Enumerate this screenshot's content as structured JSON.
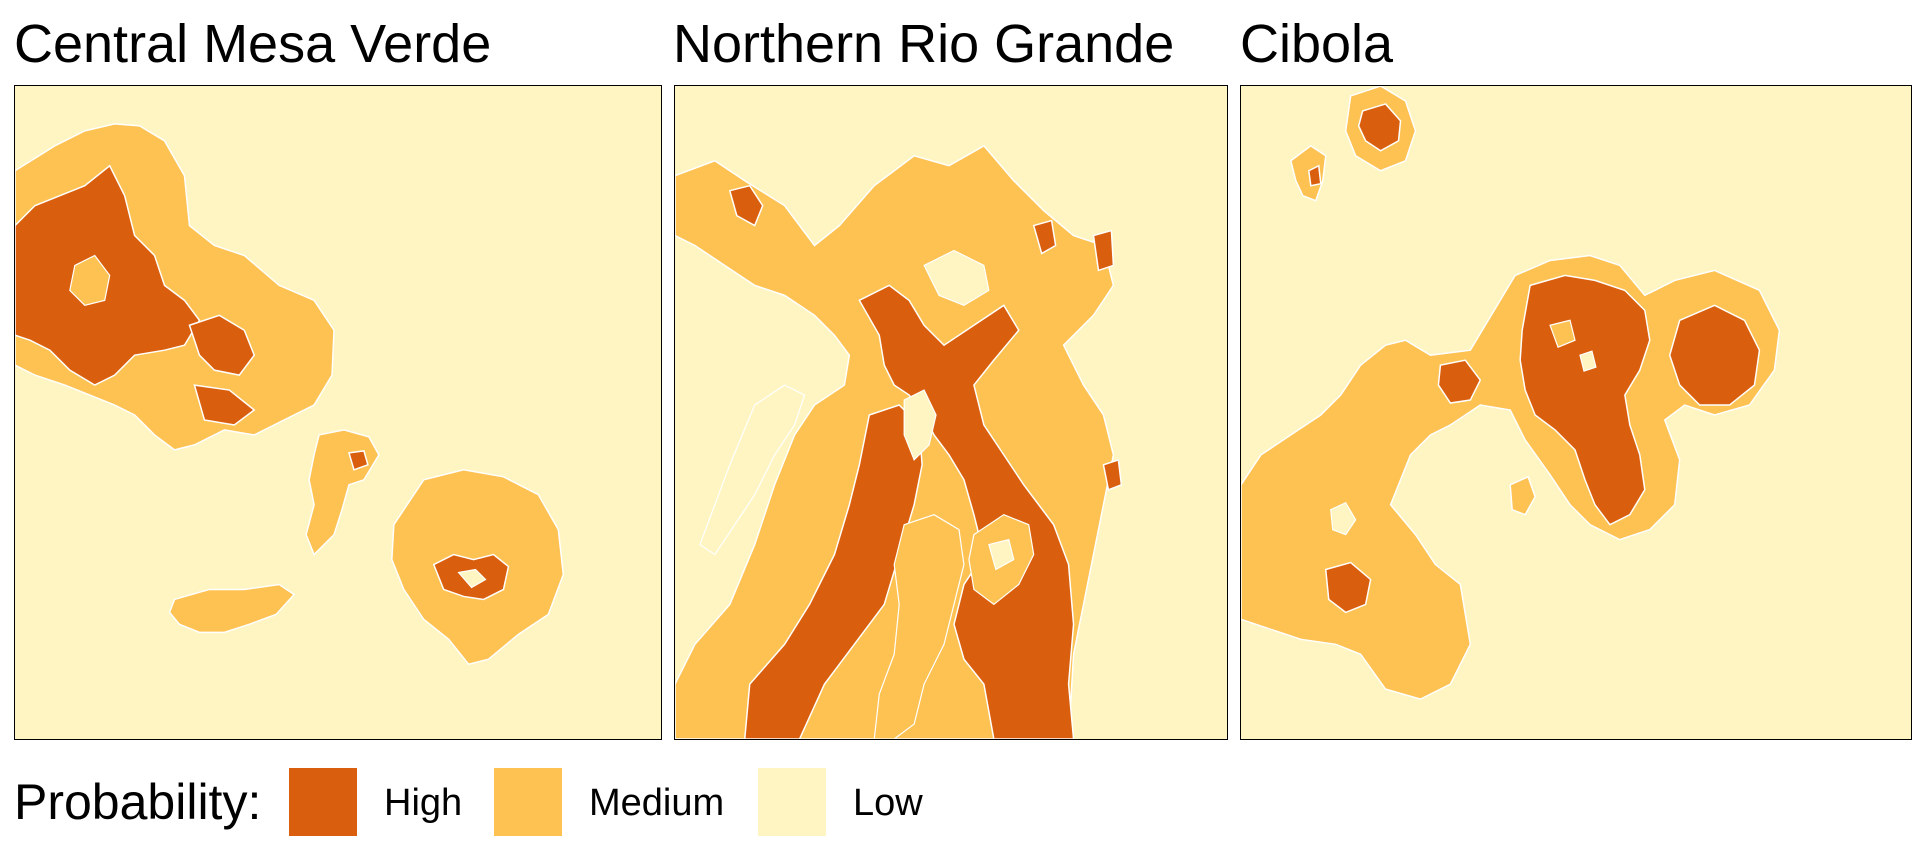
{
  "panels": [
    {
      "title": "Central Mesa Verde"
    },
    {
      "title": "Northern Rio Grande"
    },
    {
      "title": "Cibola"
    }
  ],
  "legend": {
    "title": "Probability:",
    "items": [
      {
        "label": "High",
        "color": "#D95F0E"
      },
      {
        "label": "Medium",
        "color": "#FDC252"
      },
      {
        "label": "Low",
        "color": "#FFF5C2"
      }
    ]
  },
  "colors": {
    "high": "#D95F0E",
    "medium": "#FDC252",
    "low": "#FFF5C2",
    "frame": "#000000"
  }
}
